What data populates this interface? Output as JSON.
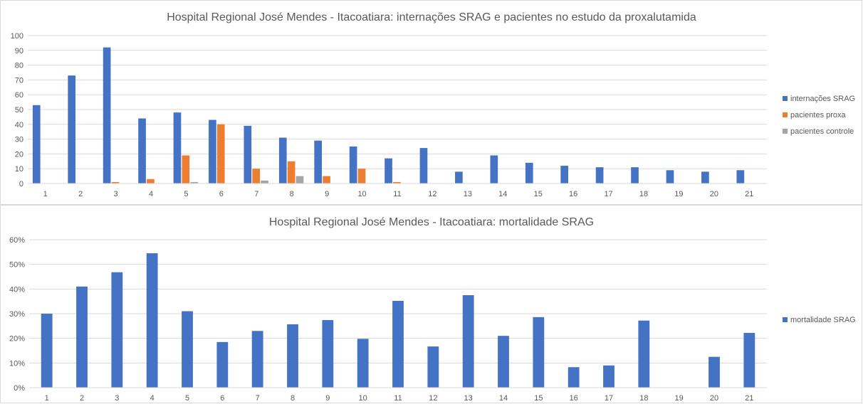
{
  "chart_data": [
    {
      "type": "bar",
      "title": "Hospital Regional José Mendes - Itacoatiara: internações SRAG e pacientes no estudo da proxalutamida",
      "categories": [
        "1",
        "2",
        "3",
        "4",
        "5",
        "6",
        "7",
        "8",
        "9",
        "10",
        "11",
        "12",
        "13",
        "14",
        "15",
        "16",
        "17",
        "18",
        "19",
        "20",
        "21"
      ],
      "series": [
        {
          "name": "internações SRAG",
          "color": "#4472c4",
          "values": [
            53,
            73,
            92,
            44,
            48,
            43,
            39,
            31,
            29,
            25,
            17,
            24,
            8,
            19,
            14,
            12,
            11,
            11,
            9,
            8,
            9
          ]
        },
        {
          "name": "pacientes proxa",
          "color": "#ed7d31",
          "values": [
            0,
            0,
            1,
            3,
            19,
            40,
            10,
            15,
            5,
            10,
            1,
            0,
            0,
            0,
            0,
            0,
            0,
            0,
            0,
            0,
            0
          ]
        },
        {
          "name": "pacientes controle",
          "color": "#a5a5a5",
          "values": [
            0,
            0,
            0,
            0,
            1,
            0,
            2,
            5,
            0,
            0,
            0,
            0,
            0,
            0,
            0,
            0,
            0,
            0,
            0,
            0,
            0
          ]
        }
      ],
      "ylim": [
        0,
        100
      ],
      "yticks": [
        0,
        10,
        20,
        30,
        40,
        50,
        60,
        70,
        80,
        90,
        100
      ],
      "ytick_labels": [
        "0",
        "10",
        "20",
        "30",
        "40",
        "50",
        "60",
        "70",
        "80",
        "90",
        "100"
      ],
      "grid": true,
      "legend": "right"
    },
    {
      "type": "bar",
      "title": "Hospital Regional José Mendes - Itacoatiara: mortalidade SRAG",
      "categories": [
        "1",
        "2",
        "3",
        "4",
        "5",
        "6",
        "7",
        "8",
        "9",
        "10",
        "11",
        "12",
        "13",
        "14",
        "15",
        "16",
        "17",
        "18",
        "19",
        "20",
        "21"
      ],
      "series": [
        {
          "name": "mortalidade SRAG",
          "color": "#4472c4",
          "values": [
            30,
            41,
            46.8,
            54.5,
            31,
            18.5,
            23,
            25.7,
            27.4,
            19.8,
            35.2,
            16.7,
            37.5,
            21,
            28.6,
            8.3,
            9,
            27.2,
            0,
            12.5,
            22.2
          ]
        }
      ],
      "ylim": [
        0,
        60
      ],
      "yticks": [
        0,
        10,
        20,
        30,
        40,
        50,
        60
      ],
      "ytick_labels": [
        "0%",
        "10%",
        "20%",
        "30%",
        "40%",
        "50%",
        "60%"
      ],
      "grid": true,
      "legend": "right"
    }
  ]
}
